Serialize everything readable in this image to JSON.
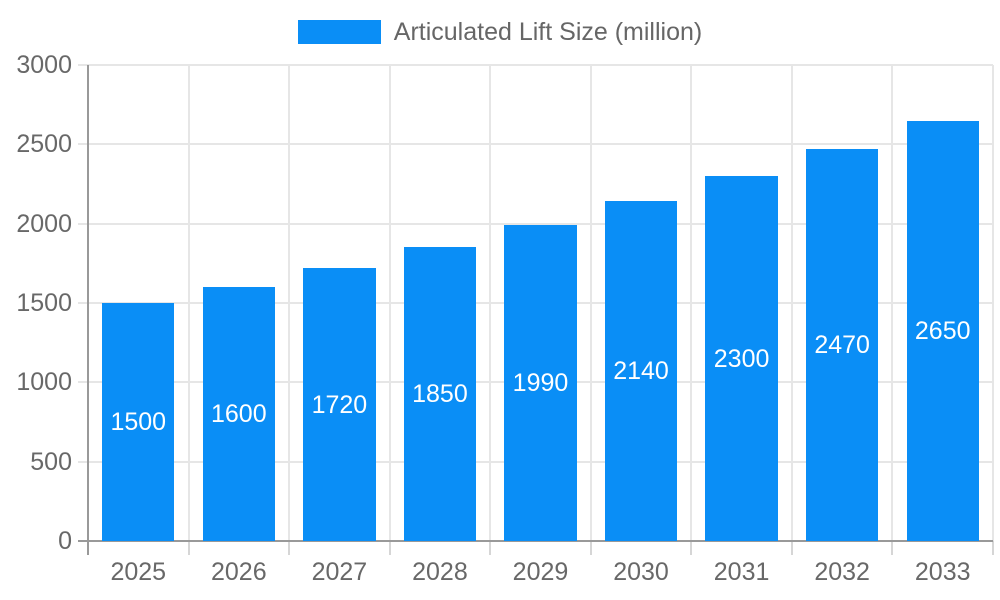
{
  "chart_data": {
    "type": "bar",
    "title": "",
    "legend": {
      "position": "top",
      "label": "Articulated Lift Size (million)"
    },
    "categories": [
      "2025",
      "2026",
      "2027",
      "2028",
      "2029",
      "2030",
      "2031",
      "2032",
      "2033"
    ],
    "series": [
      {
        "name": "Articulated Lift Size (million)",
        "values": [
          1500,
          1600,
          1720,
          1850,
          1990,
          2140,
          2300,
          2470,
          2650
        ]
      }
    ],
    "bar_value_labels": [
      "1500",
      "1600",
      "1720",
      "1850",
      "1990",
      "2140",
      "2300",
      "2470",
      "2650"
    ],
    "xlabel": "",
    "ylabel": "",
    "ylim": [
      0,
      3000
    ],
    "yticks": [
      0,
      500,
      1000,
      1500,
      2000,
      2500,
      3000
    ],
    "grid": true,
    "colors": {
      "bar": "#0a8ef6",
      "bar_label_text": "#ffffff",
      "gridline": "#e6e6e6",
      "tick_mark": "#d6d6d6",
      "axis_line": "#999999",
      "tick_text": "#686868",
      "legend_text": "#666666",
      "background": "#ffffff"
    }
  }
}
